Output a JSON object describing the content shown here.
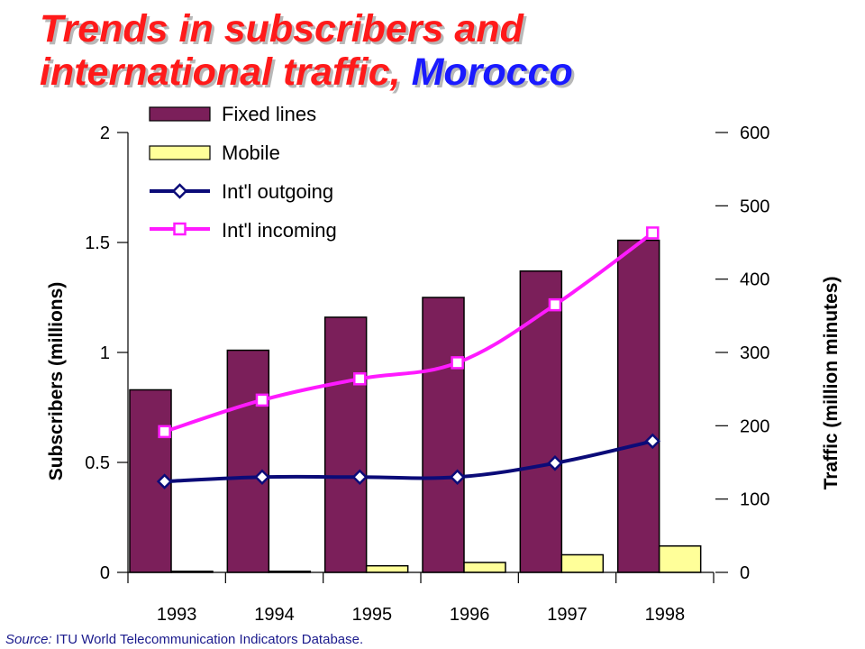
{
  "title": {
    "line1": "Trends in subscribers and",
    "line2_prefix": "international traffic, ",
    "line2_highlight": "Morocco"
  },
  "source": {
    "label": "Source:",
    "text": " ITU World Telecommunication Indicators Database."
  },
  "colors": {
    "fixed": "#7b1f5a",
    "mobile": "#ffff99",
    "outgoing": "#0b0b78",
    "incoming": "#ff1aff"
  },
  "chart_data": {
    "type": "bar",
    "categories": [
      "1993",
      "1994",
      "1995",
      "1996",
      "1997",
      "1998"
    ],
    "series": [
      {
        "name": "Fixed lines",
        "type": "bar",
        "axis": "left",
        "values": [
          0.83,
          1.01,
          1.16,
          1.25,
          1.37,
          1.51
        ]
      },
      {
        "name": "Mobile",
        "type": "bar",
        "axis": "left",
        "values": [
          0.005,
          0.005,
          0.03,
          0.045,
          0.08,
          0.12
        ]
      },
      {
        "name": "Int'l outgoing",
        "type": "line",
        "marker": "diamond",
        "axis": "right",
        "values": [
          124,
          130,
          130,
          130,
          149,
          179
        ]
      },
      {
        "name": "Int'l incoming",
        "type": "line",
        "marker": "square",
        "axis": "right",
        "values": [
          192,
          235,
          264,
          286,
          365,
          463
        ]
      }
    ],
    "ylabel": "Subscribers (millions)",
    "ylabel_right": "Traffic (million minutes)",
    "ylim": [
      0,
      2
    ],
    "ylim_right": [
      0,
      600
    ],
    "yticks": [
      "0",
      "0.5",
      "1",
      "1.5",
      "2"
    ],
    "yticks_right": [
      "0",
      "100",
      "200",
      "300",
      "400",
      "500",
      "600"
    ],
    "grid": false,
    "legend_position": "top-left"
  }
}
